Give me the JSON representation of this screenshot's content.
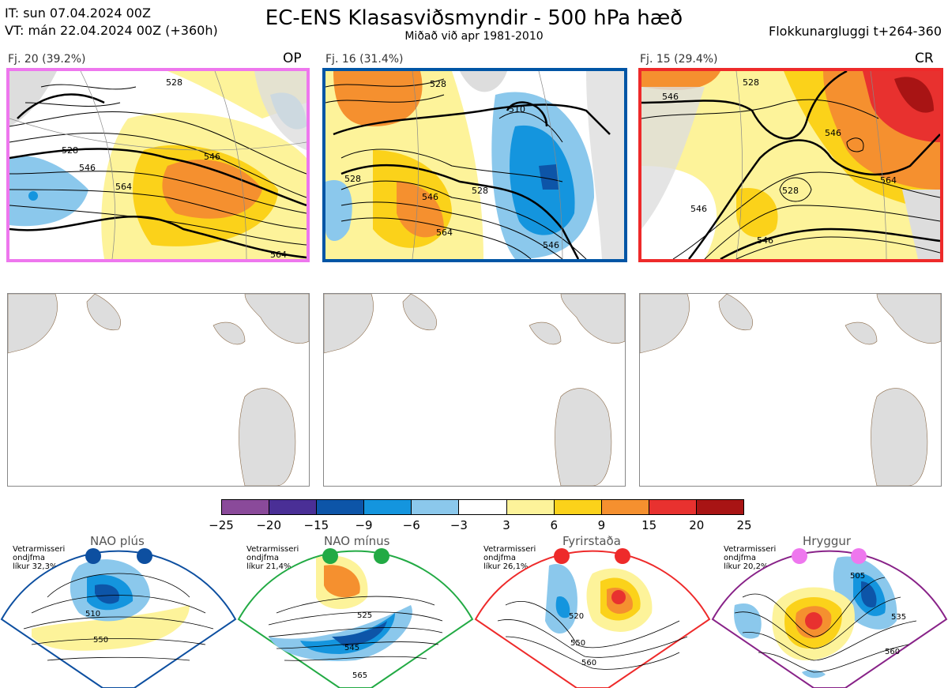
{
  "header": {
    "it": "IT: sun 07.04.2024 00Z",
    "vt": "VT: mán 22.04.2024 00Z  (+360h)",
    "title": "EC-ENS Klasasviðsmyndir - 500 hPa hæð",
    "subtitle": "Miðað við apr 1981-2010",
    "window": "Flokkunargluggi t+264-360"
  },
  "clusters": [
    {
      "label": "Fj. 20 (39.2%)",
      "tag": "OP",
      "border_color": "#ee77ee",
      "contours": [
        "528",
        "546",
        "564",
        "528",
        "546",
        "564"
      ]
    },
    {
      "label": "Fj. 16 (31.4%)",
      "tag": "",
      "border_color": "#0055a5",
      "contours": [
        "528",
        "510",
        "528",
        "546",
        "564",
        "546",
        "528"
      ]
    },
    {
      "label": "Fj. 15 (29.4%)",
      "tag": "CR",
      "border_color": "#ee2a2a",
      "contours": [
        "528",
        "546",
        "546",
        "528",
        "546",
        "564",
        "546"
      ]
    }
  ],
  "colorbar": {
    "ticks": [
      "−25",
      "−20",
      "−15",
      "−9",
      "−6",
      "−3",
      "3",
      "6",
      "9",
      "15",
      "20",
      "25"
    ],
    "colors": [
      "#8a4a9a",
      "#4a2f96",
      "#0d55a8",
      "#1495de",
      "#8bc8ec",
      "#ffffff",
      "#fdf39a",
      "#fbd21a",
      "#f5902f",
      "#e8312f",
      "#a81414"
    ]
  },
  "regimes": [
    {
      "name": "NAO plús",
      "note": "Vetrarmisseri\nondjfma\nlíkur 32,3%",
      "dot_color": "#0d4fa0",
      "border_color": "#0d4fa0",
      "labels": [
        "510",
        "550"
      ]
    },
    {
      "name": "NAO mínus",
      "note": "Vetrarmisseri\nondjfma\nlíkur 21,4%",
      "dot_color": "#22aa44",
      "border_color": "#22aa44",
      "labels": [
        "525",
        "545",
        "565"
      ]
    },
    {
      "name": "Fyrirstaða",
      "note": "Vetrarmisseri\nondjfma\nlíkur 26,1%",
      "dot_color": "#ee2a2a",
      "border_color": "#ee2a2a",
      "labels": [
        "520",
        "550",
        "560"
      ]
    },
    {
      "name": "Hryggur",
      "note": "Vetrarmisseri\nondjfma\nlíkur 20,2%",
      "dot_color": "#ee77ee",
      "border_color": "#882288",
      "labels": [
        "505",
        "535",
        "560"
      ]
    }
  ]
}
